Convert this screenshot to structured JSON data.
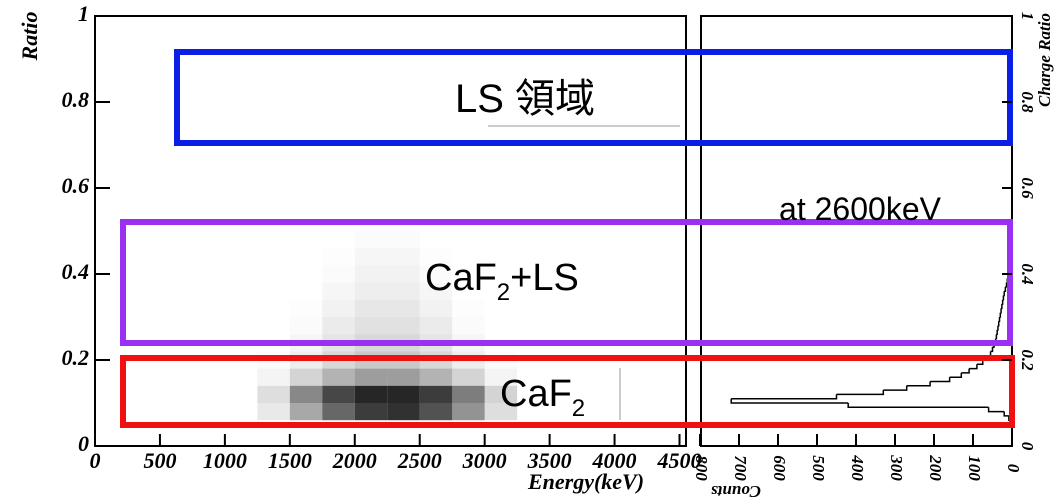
{
  "chart_data": [
    {
      "type": "heatmap",
      "x_label": "Energy(keV)",
      "y_label": "Ratio",
      "xlim": [
        0,
        4550
      ],
      "ylim": [
        0,
        1
      ],
      "xticks": [
        0,
        500,
        1000,
        1500,
        2000,
        2500,
        3000,
        3500,
        4000,
        4500
      ],
      "yticks": [
        0,
        0.2,
        0.4,
        0.6,
        0.8,
        1
      ],
      "x_bins": [
        1250,
        1500,
        1750,
        2000,
        2250,
        2500,
        2750,
        3000,
        3250
      ],
      "y_bins": [
        0.06,
        0.1,
        0.14,
        0.18,
        0.22,
        0.26,
        0.3,
        0.34,
        0.38,
        0.42,
        0.46,
        0.5
      ],
      "values": [
        [
          10,
          40,
          70,
          90,
          95,
          80,
          50,
          15
        ],
        [
          15,
          55,
          85,
          100,
          100,
          90,
          60,
          20
        ],
        [
          5,
          20,
          35,
          45,
          45,
          35,
          20,
          5
        ],
        [
          2,
          8,
          18,
          25,
          25,
          18,
          8,
          2
        ],
        [
          0,
          4,
          12,
          18,
          18,
          12,
          4,
          0
        ],
        [
          0,
          2,
          9,
          14,
          14,
          9,
          2,
          0
        ],
        [
          0,
          1,
          6,
          11,
          11,
          6,
          1,
          0
        ],
        [
          0,
          0,
          4,
          8,
          8,
          4,
          0,
          0
        ],
        [
          0,
          0,
          2,
          6,
          6,
          2,
          0,
          0
        ],
        [
          0,
          0,
          1,
          4,
          4,
          1,
          0,
          0
        ],
        [
          0,
          0,
          0,
          2,
          2,
          0,
          0,
          0
        ]
      ],
      "max_value": 100,
      "color": "#000000",
      "annotations": {
        "ls": "LS 領域",
        "mixed": [
          "CaF",
          "2",
          "+LS"
        ],
        "caf2": [
          "CaF",
          "2"
        ]
      }
    },
    {
      "type": "histogram",
      "orientation": "horizontal",
      "x_label": "Counts",
      "y_label": "Charge Ratio",
      "annotation": "at 2600keV",
      "xlim": [
        800,
        0
      ],
      "ylim": [
        0,
        1
      ],
      "xticks": [
        800,
        700,
        600,
        500,
        400,
        300,
        200,
        100,
        0
      ],
      "yticks": [
        0,
        0.2,
        0.4,
        0.6,
        0.8,
        1
      ],
      "bins": [
        0.05,
        0.06,
        0.07,
        0.08,
        0.09,
        0.1,
        0.11,
        0.12,
        0.13,
        0.14,
        0.15,
        0.16,
        0.17,
        0.18,
        0.19,
        0.2,
        0.21,
        0.22,
        0.23,
        0.24,
        0.25,
        0.26,
        0.27,
        0.28,
        0.29,
        0.3,
        0.31,
        0.32,
        0.33,
        0.34,
        0.35,
        0.36,
        0.37,
        0.38,
        0.39,
        0.4,
        0.41,
        0.42,
        0.43,
        0.44,
        0.45
      ],
      "counts": [
        3,
        8,
        20,
        60,
        420,
        720,
        450,
        330,
        270,
        210,
        160,
        130,
        110,
        90,
        75,
        62,
        55,
        50,
        46,
        42,
        40,
        38,
        36,
        34,
        32,
        30,
        28,
        26,
        24,
        22,
        20,
        17,
        14,
        12,
        10,
        8,
        6,
        5,
        4,
        3
      ],
      "color": "#000000"
    }
  ]
}
